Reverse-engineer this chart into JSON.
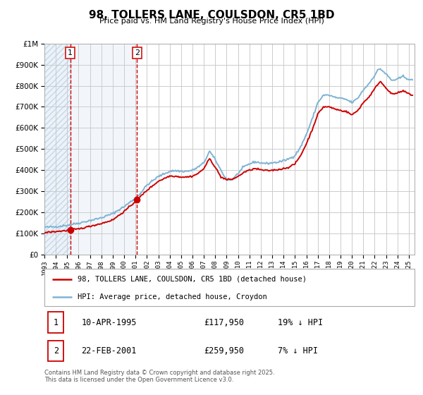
{
  "title": "98, TOLLERS LANE, COULSDON, CR5 1BD",
  "subtitle": "Price paid vs. HM Land Registry's House Price Index (HPI)",
  "legend_property": "98, TOLLERS LANE, COULSDON, CR5 1BD (detached house)",
  "legend_hpi": "HPI: Average price, detached house, Croydon",
  "transaction1_date": "10-APR-1995",
  "transaction1_price": "£117,950",
  "transaction1_hpi": "19% ↓ HPI",
  "transaction1_year": 1995.27,
  "transaction1_value": 117950,
  "transaction2_date": "22-FEB-2001",
  "transaction2_price": "£259,950",
  "transaction2_hpi": "7% ↓ HPI",
  "transaction2_year": 2001.13,
  "transaction2_value": 259950,
  "footer": "Contains HM Land Registry data © Crown copyright and database right 2025.\nThis data is licensed under the Open Government Licence v3.0.",
  "property_color": "#cc0000",
  "hpi_color": "#7fb3d3",
  "background_color": "#ffffff",
  "grid_color": "#cccccc",
  "vline_color": "#cc0000",
  "ylim_min": 0,
  "ylim_max": 1000000,
  "xlim_min": 1993.0,
  "xlim_max": 2025.5
}
